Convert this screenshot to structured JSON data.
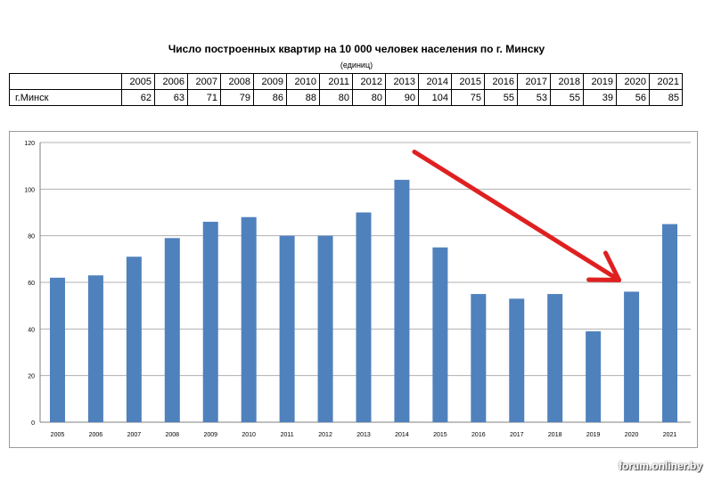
{
  "header": {
    "title": "Число построенных квартир на 10 000 человек населения по г. Минску",
    "units": "(единиц)"
  },
  "table": {
    "row_label": "г.Минск"
  },
  "chart_data": {
    "type": "bar",
    "categories": [
      "2005",
      "2006",
      "2007",
      "2008",
      "2009",
      "2010",
      "2011",
      "2012",
      "2013",
      "2014",
      "2015",
      "2016",
      "2017",
      "2018",
      "2019",
      "2020",
      "2021"
    ],
    "x_tick_labels": [
      "2005",
      "2006",
      "2007",
      "2008",
      "2009",
      "2010",
      "2011",
      "2012",
      "2013",
      "2014",
      "2015",
      "2016",
      "2017",
      "2018",
      "2019",
      "2020",
      "2021"
    ],
    "values": [
      62,
      63,
      71,
      79,
      86,
      88,
      80,
      80,
      90,
      104,
      75,
      55,
      53,
      55,
      39,
      56,
      85
    ],
    "y_tick_labels": [
      "0",
      "20",
      "40",
      "60",
      "80",
      "100",
      "120"
    ],
    "ylim": [
      0,
      120
    ],
    "y_ticks": [
      0,
      20,
      40,
      60,
      80,
      100,
      120
    ],
    "grid": true,
    "bar_color": "#4f81bd",
    "gridline_color": "#b0b0b0",
    "annotation": {
      "type": "arrow",
      "color": "#e02020",
      "from_category": "2014",
      "to_category": "2020"
    }
  },
  "watermark": "forum.onliner.by"
}
